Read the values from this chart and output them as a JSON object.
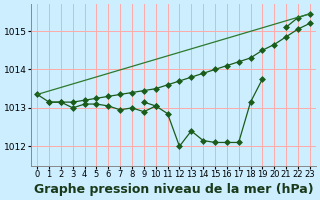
{
  "bg_color": "#cceeff",
  "grid_color": "#ffaaaa",
  "line_color": "#1a5c1a",
  "line_color2": "#2d7a2d",
  "xlabel": "Graphe pression niveau de la mer (hPa)",
  "xlabel_fontsize": 9,
  "xlim": [
    -0.5,
    23.5
  ],
  "ylim": [
    1011.5,
    1015.7
  ],
  "yticks": [
    1012,
    1013,
    1014,
    1015
  ],
  "xticks": [
    0,
    1,
    2,
    3,
    4,
    5,
    6,
    7,
    8,
    9,
    10,
    11,
    12,
    13,
    14,
    15,
    16,
    17,
    18,
    19,
    20,
    21,
    22,
    23
  ],
  "series1": {
    "x": [
      0,
      1,
      2,
      3,
      4,
      5,
      6,
      7,
      8,
      9,
      10,
      11,
      12,
      13,
      14,
      15,
      16,
      17,
      18,
      19,
      20,
      21,
      22,
      23
    ],
    "y": [
      1013.35,
      1013.15,
      1013.15,
      1013.0,
      1013.1,
      1013.1,
      1013.05,
      1012.95,
      1013.0,
      1012.9,
      1013.05,
      null,
      null,
      null,
      null,
      null,
      null,
      null,
      null,
      null,
      null,
      null,
      null,
      null
    ]
  },
  "series2": {
    "x": [
      0,
      1,
      2,
      3,
      4,
      5,
      6,
      7,
      8,
      9,
      10,
      11,
      12,
      13,
      14,
      15,
      16,
      17,
      18,
      19,
      20,
      21,
      22,
      23
    ],
    "y": [
      null,
      1013.15,
      1013.15,
      1013.15,
      1013.2,
      1013.25,
      1013.3,
      1013.35,
      1013.4,
      1013.45,
      1013.5,
      1013.6,
      1013.7,
      1013.8,
      1013.9,
      1014.0,
      1014.1,
      1014.2,
      1014.3,
      1014.5,
      1014.65,
      1014.85,
      1015.05,
      1015.2
    ]
  },
  "series3": {
    "x": [
      9,
      10,
      11,
      12,
      13,
      14,
      15,
      16,
      17,
      18,
      19,
      20,
      21,
      22,
      23
    ],
    "y": [
      1013.15,
      1013.05,
      1012.85,
      1012.0,
      1012.4,
      1012.15,
      1012.1,
      1012.1,
      1012.1,
      1013.15,
      1013.75,
      null,
      1015.1,
      1015.35,
      1015.45
    ]
  },
  "series4": {
    "x": [
      0,
      23
    ],
    "y": [
      1013.35,
      1015.45
    ]
  }
}
